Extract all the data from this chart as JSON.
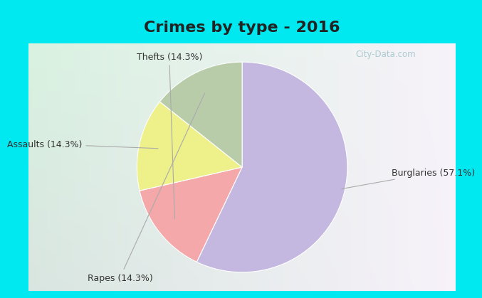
{
  "title": "Crimes by type - 2016",
  "slices": [
    {
      "label": "Burglaries (57.1%)",
      "value": 57.1,
      "color": "#c4b8e0"
    },
    {
      "label": "Thefts (14.3%)",
      "value": 14.3,
      "color": "#f4a8aa"
    },
    {
      "label": "Assaults (14.3%)",
      "value": 14.3,
      "color": "#eef08a"
    },
    {
      "label": "Rapes (14.3%)",
      "value": 14.3,
      "color": "#b8ccaa"
    }
  ],
  "background_cyan": "#00e8f0",
  "title_fontsize": 16,
  "label_fontsize": 9,
  "watermark": "City-Data.com",
  "title_color": "#222222",
  "label_color": "#333333",
  "line_color": "#aaaaaa",
  "watermark_color": "#a0c4cc"
}
